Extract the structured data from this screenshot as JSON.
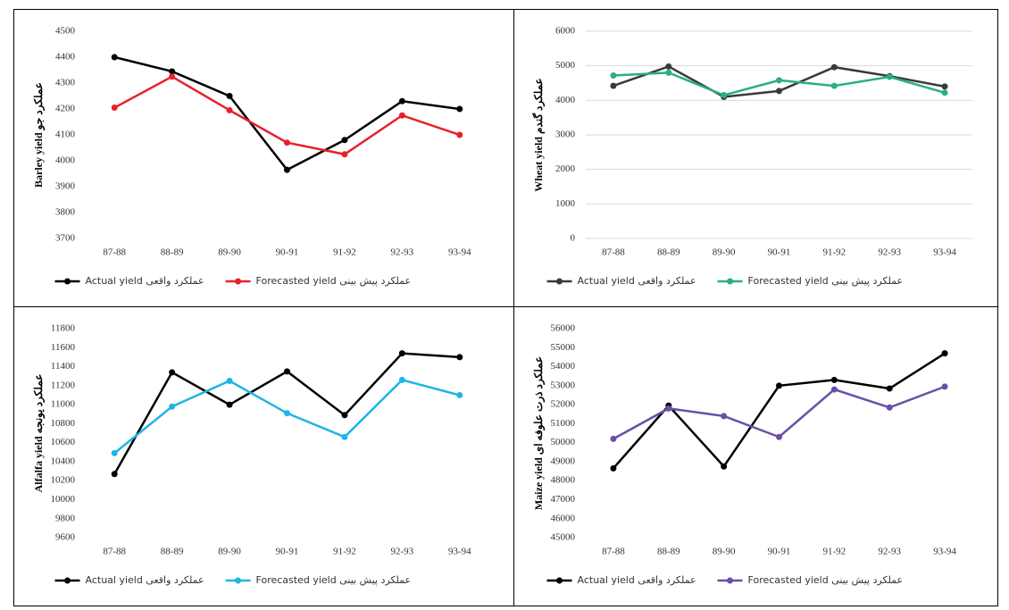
{
  "chart_data": [
    {
      "type": "line",
      "y_label": "Barley yield عملکرد جو",
      "categories": [
        "87-88",
        "88-89",
        "89-90",
        "90-91",
        "91-92",
        "92-93",
        "93-94"
      ],
      "series": [
        {
          "name": "Actual yield عملکرد واقعی",
          "color": "#000000",
          "values": [
            4400,
            4345,
            4250,
            3965,
            4080,
            4230,
            4200
          ]
        },
        {
          "name": "Forecasted yield عملکرد پیش بینی",
          "color": "#e8202a",
          "values": [
            4205,
            4325,
            4195,
            4070,
            4025,
            4175,
            4100
          ]
        }
      ],
      "ylim": [
        3700,
        4500
      ],
      "yticks": [
        3700,
        3800,
        3900,
        4000,
        4100,
        4200,
        4300,
        4400,
        4500
      ],
      "grid": false
    },
    {
      "type": "line",
      "y_label": "Wheat yield عملکرد گندم",
      "categories": [
        "87-88",
        "88-89",
        "89-90",
        "90-91",
        "91-92",
        "92-93",
        "93-94"
      ],
      "series": [
        {
          "name": "Actual yield عملکرد واقعی",
          "color": "#3a3a3a",
          "values": [
            4420,
            4980,
            4100,
            4270,
            4960,
            4700,
            4400
          ]
        },
        {
          "name": "Forecasted yield عملکرد پیش بینی",
          "color": "#2ab07a",
          "values": [
            4720,
            4800,
            4150,
            4580,
            4420,
            4680,
            4220
          ]
        }
      ],
      "ylim": [
        0,
        6000
      ],
      "yticks": [
        0,
        1000,
        2000,
        3000,
        4000,
        5000,
        6000
      ],
      "grid": true
    },
    {
      "type": "line",
      "y_label": "Alfalfa yield عملکرد یونجه",
      "categories": [
        "87-88",
        "88-89",
        "89-90",
        "90-91",
        "91-92",
        "92-93",
        "93-94"
      ],
      "series": [
        {
          "name": "Actual yield عملکرد واقعی",
          "color": "#000000",
          "values": [
            10270,
            11340,
            11000,
            11350,
            10890,
            11540,
            11500
          ]
        },
        {
          "name": "Forecasted yield عملکرد پیش بینی",
          "color": "#1fb5e6",
          "values": [
            10490,
            10980,
            11250,
            10910,
            10660,
            11260,
            11100
          ]
        }
      ],
      "ylim": [
        9600,
        11800
      ],
      "yticks": [
        9600,
        9800,
        10000,
        10200,
        10400,
        10600,
        10800,
        11000,
        11200,
        11400,
        11600,
        11800
      ],
      "grid": false
    },
    {
      "type": "line",
      "y_label": "Maize yield عملکرد ذرت علوفه ای",
      "categories": [
        "87-88",
        "88-89",
        "89-90",
        "90-91",
        "91-92",
        "92-93",
        "93-94"
      ],
      "series": [
        {
          "name": "Actual yield عملکرد واقعی",
          "color": "#000000",
          "values": [
            48650,
            51950,
            48750,
            53000,
            53300,
            52850,
            54700
          ]
        },
        {
          "name": "Forecasted yield عملکرد پیش بینی",
          "color": "#6a4fa8",
          "values": [
            50200,
            51800,
            51400,
            50300,
            52800,
            51850,
            52950
          ]
        }
      ],
      "ylim": [
        45000,
        56000
      ],
      "yticks": [
        45000,
        46000,
        47000,
        48000,
        49000,
        50000,
        51000,
        52000,
        53000,
        54000,
        55000,
        56000
      ],
      "grid": false
    }
  ]
}
